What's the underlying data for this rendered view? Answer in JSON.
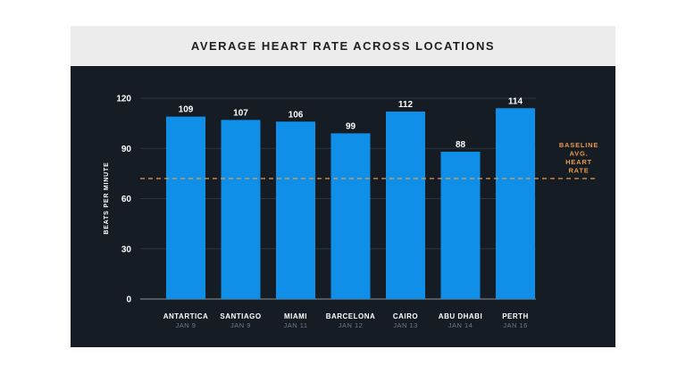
{
  "chart_data": {
    "type": "bar",
    "title": "AVERAGE HEART RATE ACROSS LOCATIONS",
    "ylabel": "BEATS PER MINUTE",
    "xlabel": "",
    "ylim": [
      0,
      120
    ],
    "yticks": [
      "0",
      "30",
      "60",
      "90",
      "120"
    ],
    "grid": true,
    "categories": [
      "ANTARTICA",
      "SANTIAGO",
      "MIAMI",
      "BARCELONA",
      "CAIRO",
      "ABU DHABI",
      "PERTH"
    ],
    "dates": [
      "JAN 9",
      "JAN 9",
      "JAN 11",
      "JAN 12",
      "JAN 13",
      "JAN 14",
      "JAN 16"
    ],
    "values": [
      109,
      107,
      106,
      99,
      112,
      88,
      114
    ],
    "baseline": {
      "value": 72,
      "label_lines": [
        "BASELINE",
        "AVG.",
        "HEART",
        "RATE"
      ]
    },
    "colors": {
      "bar": "#0f8fe8",
      "baseline": "#e89a4a",
      "background": "#151c24",
      "grid": "#2c3540"
    }
  }
}
